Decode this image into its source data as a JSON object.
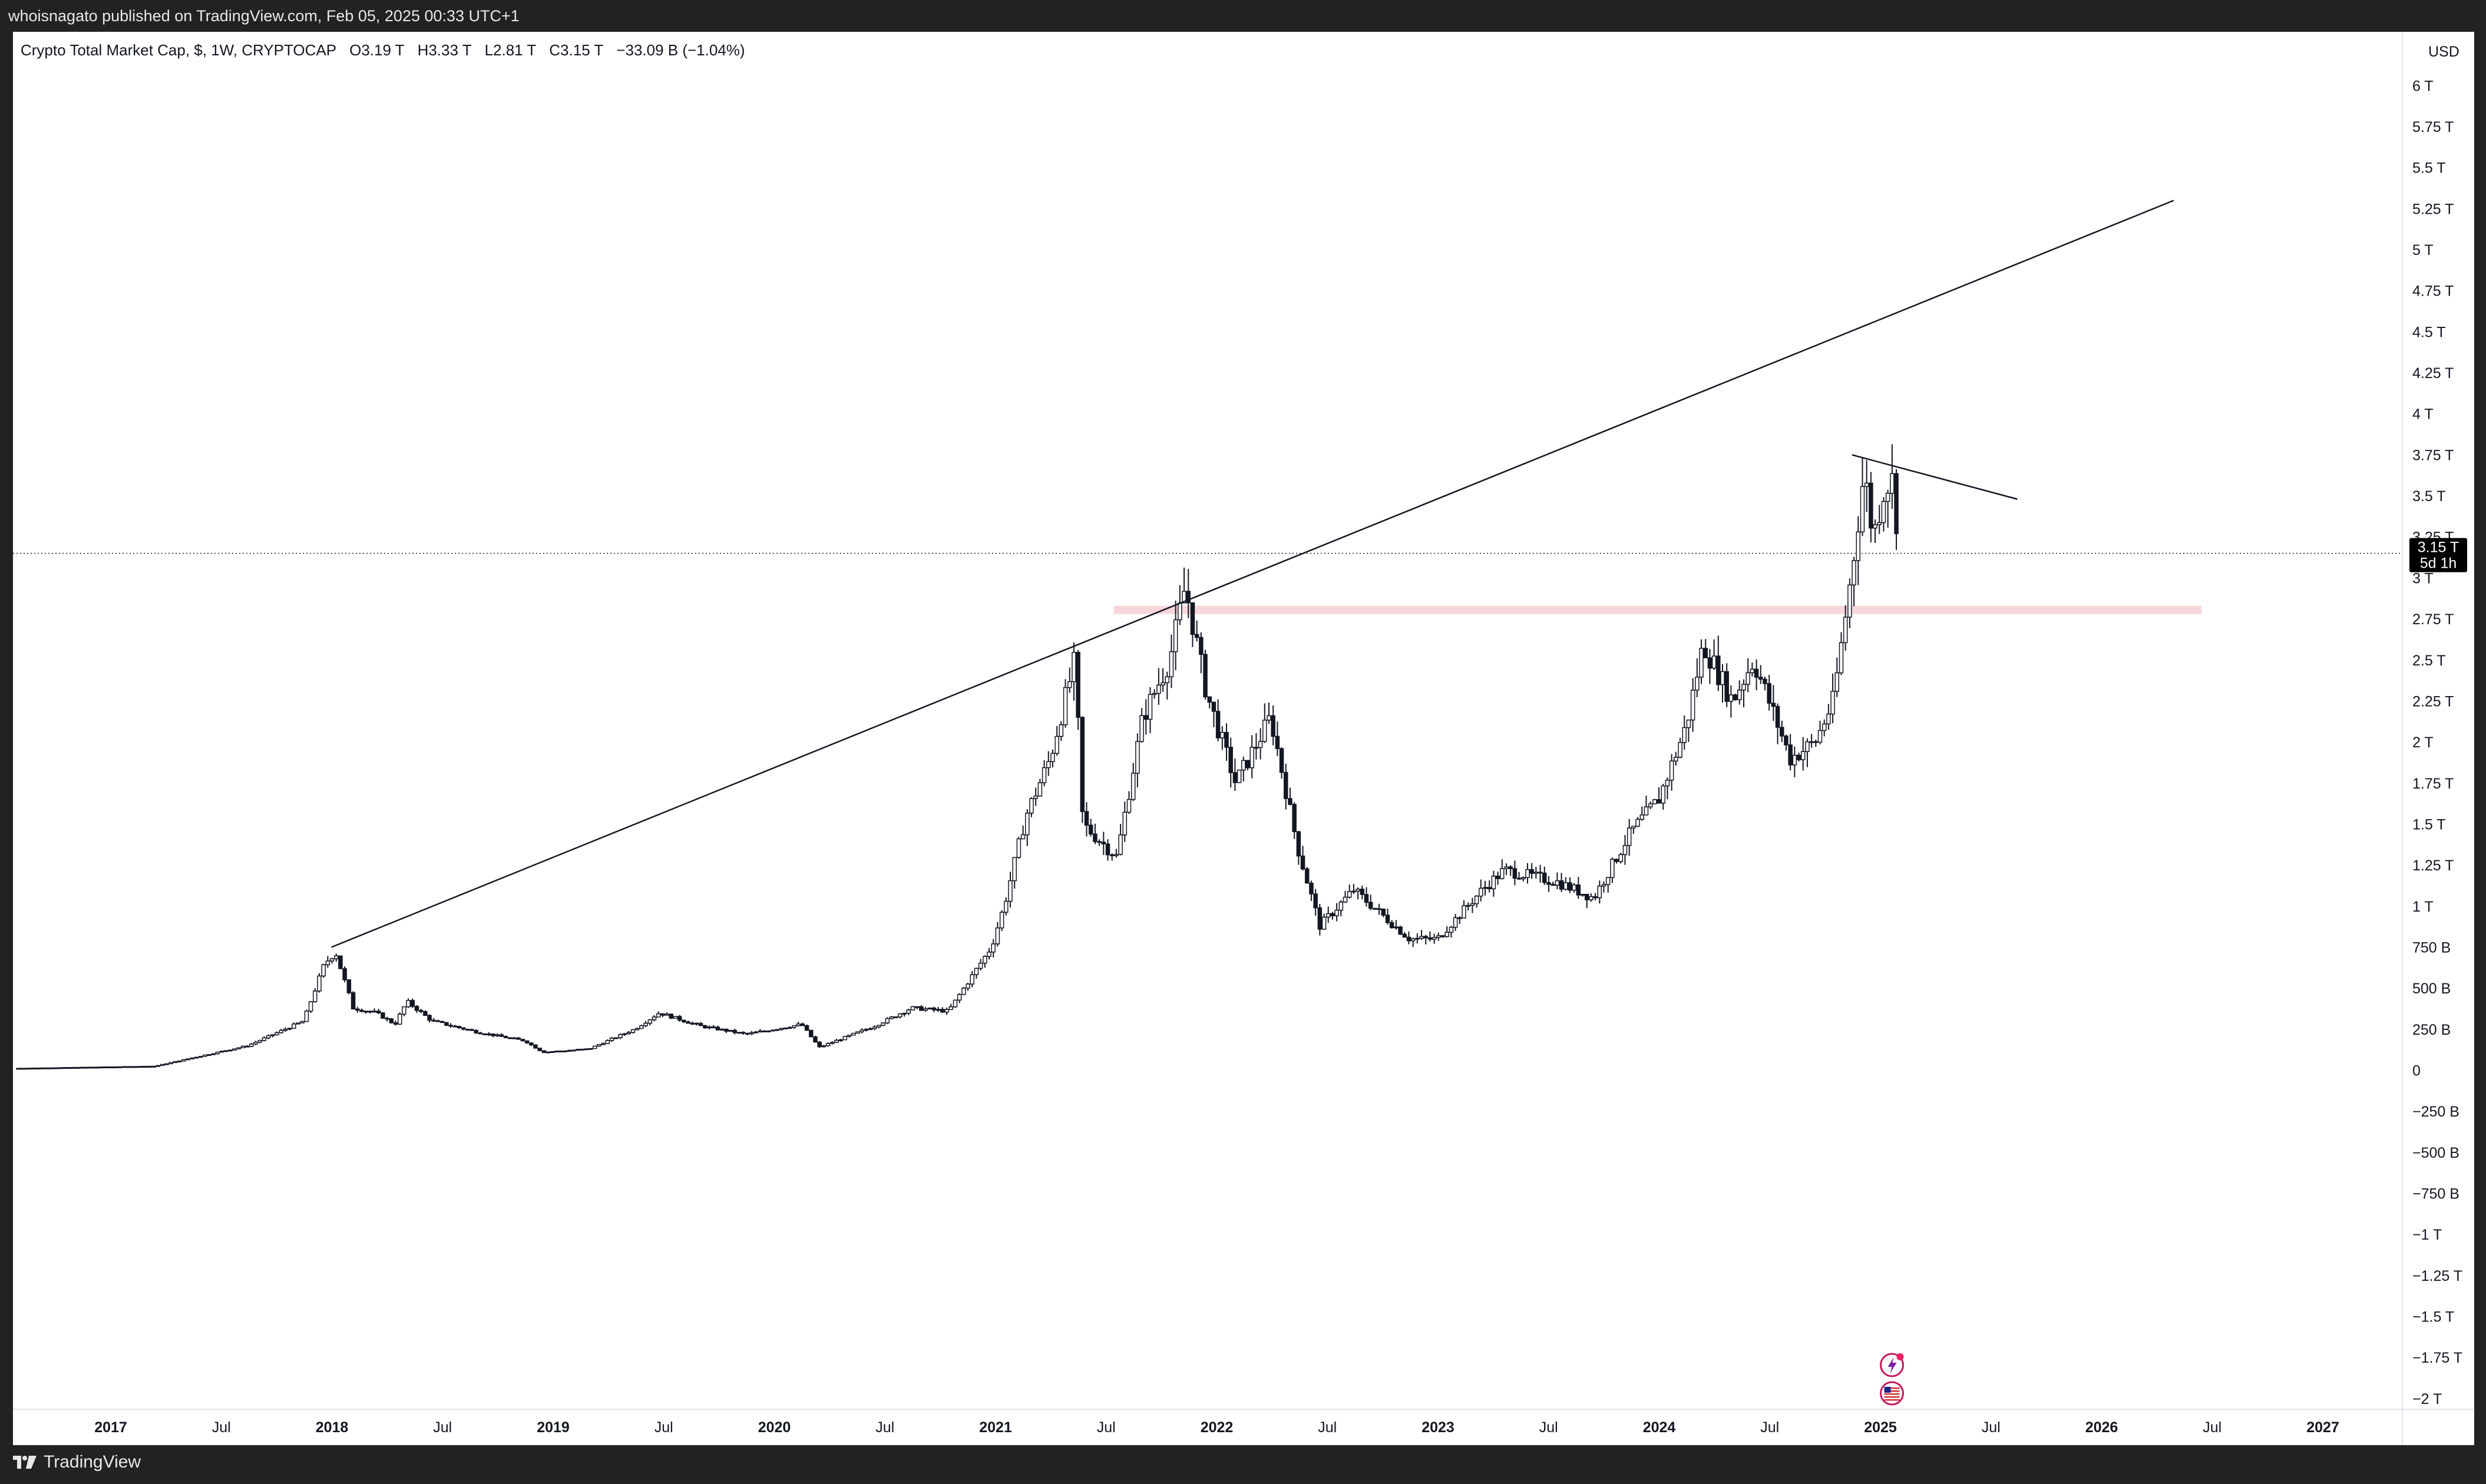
{
  "header": {
    "published_by": "whoisnagato published on TradingView.com, Feb 05, 2025 00:33 UTC+1"
  },
  "legend": {
    "title": "Crypto Total Market Cap, $, 1W, CRYPTOCAP",
    "open": "O3.19 T",
    "high": "H3.33 T",
    "low": "L2.81 T",
    "close": "C3.15 T",
    "change": "−33.09 B (−1.04%)"
  },
  "price_scale": {
    "currency": "USD",
    "ticks": [
      {
        "v": 6,
        "label": "6 T"
      },
      {
        "v": 5.75,
        "label": "5.75 T"
      },
      {
        "v": 5.5,
        "label": "5.5 T"
      },
      {
        "v": 5.25,
        "label": "5.25 T"
      },
      {
        "v": 5,
        "label": "5 T"
      },
      {
        "v": 4.75,
        "label": "4.75 T"
      },
      {
        "v": 4.5,
        "label": "4.5 T"
      },
      {
        "v": 4.25,
        "label": "4.25 T"
      },
      {
        "v": 4,
        "label": "4 T"
      },
      {
        "v": 3.75,
        "label": "3.75 T"
      },
      {
        "v": 3.5,
        "label": "3.5 T"
      },
      {
        "v": 3.25,
        "label": "3.25 T"
      },
      {
        "v": 3,
        "label": "3 T"
      },
      {
        "v": 2.75,
        "label": "2.75 T"
      },
      {
        "v": 2.5,
        "label": "2.5 T"
      },
      {
        "v": 2.25,
        "label": "2.25 T"
      },
      {
        "v": 2,
        "label": "2 T"
      },
      {
        "v": 1.75,
        "label": "1.75 T"
      },
      {
        "v": 1.5,
        "label": "1.5 T"
      },
      {
        "v": 1.25,
        "label": "1.25 T"
      },
      {
        "v": 1,
        "label": "1 T"
      },
      {
        "v": 0.75,
        "label": "750 B"
      },
      {
        "v": 0.5,
        "label": "500 B"
      },
      {
        "v": 0.25,
        "label": "250 B"
      },
      {
        "v": 0,
        "label": "0"
      },
      {
        "v": -0.25,
        "label": "−250 B"
      },
      {
        "v": -0.5,
        "label": "−500 B"
      },
      {
        "v": -0.75,
        "label": "−750 B"
      },
      {
        "v": -1,
        "label": "−1 T"
      },
      {
        "v": -1.25,
        "label": "−1.25 T"
      },
      {
        "v": -1.5,
        "label": "−1.5 T"
      },
      {
        "v": -1.75,
        "label": "−1.75 T"
      },
      {
        "v": -2,
        "label": "−2 T"
      }
    ],
    "last_price_label": "3.15 T",
    "countdown_label": "5d 1h"
  },
  "time_scale": {
    "ticks": [
      {
        "t": 2017.0,
        "label": "2017",
        "bold": true
      },
      {
        "t": 2017.5,
        "label": "Jul",
        "bold": false
      },
      {
        "t": 2018.0,
        "label": "2018",
        "bold": true
      },
      {
        "t": 2018.5,
        "label": "Jul",
        "bold": false
      },
      {
        "t": 2019.0,
        "label": "2019",
        "bold": true
      },
      {
        "t": 2019.5,
        "label": "Jul",
        "bold": false
      },
      {
        "t": 2020.0,
        "label": "2020",
        "bold": true
      },
      {
        "t": 2020.5,
        "label": "Jul",
        "bold": false
      },
      {
        "t": 2021.0,
        "label": "2021",
        "bold": true
      },
      {
        "t": 2021.5,
        "label": "Jul",
        "bold": false
      },
      {
        "t": 2022.0,
        "label": "2022",
        "bold": true
      },
      {
        "t": 2022.5,
        "label": "Jul",
        "bold": false
      },
      {
        "t": 2023.0,
        "label": "2023",
        "bold": true
      },
      {
        "t": 2023.5,
        "label": "Jul",
        "bold": false
      },
      {
        "t": 2024.0,
        "label": "2024",
        "bold": true
      },
      {
        "t": 2024.5,
        "label": "Jul",
        "bold": false
      },
      {
        "t": 2025.0,
        "label": "2025",
        "bold": true
      },
      {
        "t": 2025.5,
        "label": "Jul",
        "bold": false
      },
      {
        "t": 2026.0,
        "label": "2026",
        "bold": true
      },
      {
        "t": 2026.5,
        "label": "Jul",
        "bold": false
      },
      {
        "t": 2027.0,
        "label": "2027",
        "bold": true
      }
    ]
  },
  "chart_data": {
    "type": "candlestick",
    "symbol": "CRYPTOCAP:TOTAL",
    "interval": "1W",
    "unit": "USD (trillions)",
    "ylim": [
      -2.03,
      6.3
    ],
    "xlim": [
      "2016-08",
      "2027-06"
    ],
    "price_path_T": [
      {
        "t": "2016-08-01",
        "v": 0.012
      },
      {
        "t": "2017-03-15",
        "v": 0.025
      },
      {
        "t": "2017-05-15",
        "v": 0.075
      },
      {
        "t": "2017-08-15",
        "v": 0.15
      },
      {
        "t": "2017-11-15",
        "v": 0.3
      },
      {
        "t": "2017-12-20",
        "v": 0.65
      },
      {
        "t": "2018-01-07",
        "v": 0.72
      },
      {
        "t": "2018-02-05",
        "v": 0.38
      },
      {
        "t": "2018-03-15",
        "v": 0.35
      },
      {
        "t": "2018-04-15",
        "v": 0.28
      },
      {
        "t": "2018-05-05",
        "v": 0.42
      },
      {
        "t": "2018-06-15",
        "v": 0.3
      },
      {
        "t": "2018-09-01",
        "v": 0.23
      },
      {
        "t": "2018-11-15",
        "v": 0.18
      },
      {
        "t": "2018-12-15",
        "v": 0.11
      },
      {
        "t": "2019-03-01",
        "v": 0.13
      },
      {
        "t": "2019-05-15",
        "v": 0.25
      },
      {
        "t": "2019-06-25",
        "v": 0.35
      },
      {
        "t": "2019-09-01",
        "v": 0.27
      },
      {
        "t": "2019-11-15",
        "v": 0.22
      },
      {
        "t": "2020-02-15",
        "v": 0.28
      },
      {
        "t": "2020-03-15",
        "v": 0.14
      },
      {
        "t": "2020-06-15",
        "v": 0.27
      },
      {
        "t": "2020-08-15",
        "v": 0.38
      },
      {
        "t": "2020-10-15",
        "v": 0.36
      },
      {
        "t": "2020-12-25",
        "v": 0.75
      },
      {
        "t": "2021-01-15",
        "v": 1.0
      },
      {
        "t": "2021-02-20",
        "v": 1.55
      },
      {
        "t": "2021-04-01",
        "v": 1.9
      },
      {
        "t": "2021-05-12",
        "v": 2.5
      },
      {
        "t": "2021-05-25",
        "v": 1.5
      },
      {
        "t": "2021-07-20",
        "v": 1.3
      },
      {
        "t": "2021-09-01",
        "v": 2.15
      },
      {
        "t": "2021-10-15",
        "v": 2.5
      },
      {
        "t": "2021-11-10",
        "v": 2.95
      },
      {
        "t": "2021-12-15",
        "v": 2.3
      },
      {
        "t": "2022-02-01",
        "v": 1.75
      },
      {
        "t": "2022-03-31",
        "v": 2.15
      },
      {
        "t": "2022-05-15",
        "v": 1.35
      },
      {
        "t": "2022-06-20",
        "v": 0.88
      },
      {
        "t": "2022-08-15",
        "v": 1.1
      },
      {
        "t": "2022-11-15",
        "v": 0.8
      },
      {
        "t": "2022-12-31",
        "v": 0.8
      },
      {
        "t": "2023-03-15",
        "v": 1.1
      },
      {
        "t": "2023-04-20",
        "v": 1.22
      },
      {
        "t": "2023-07-15",
        "v": 1.15
      },
      {
        "t": "2023-09-15",
        "v": 1.05
      },
      {
        "t": "2023-11-15",
        "v": 1.45
      },
      {
        "t": "2023-12-31",
        "v": 1.65
      },
      {
        "t": "2024-02-15",
        "v": 2.1
      },
      {
        "t": "2024-03-14",
        "v": 2.6
      },
      {
        "t": "2024-05-01",
        "v": 2.25
      },
      {
        "t": "2024-06-05",
        "v": 2.5
      },
      {
        "t": "2024-08-05",
        "v": 1.9
      },
      {
        "t": "2024-09-15",
        "v": 2.0
      },
      {
        "t": "2024-10-15",
        "v": 2.25
      },
      {
        "t": "2024-11-15",
        "v": 3.05
      },
      {
        "t": "2024-12-05",
        "v": 3.65
      },
      {
        "t": "2024-12-20",
        "v": 3.25
      },
      {
        "t": "2025-01-07",
        "v": 3.55
      },
      {
        "t": "2025-01-20",
        "v": 3.6
      },
      {
        "t": "2025-02-03",
        "v": 3.15
      }
    ],
    "drawings": [
      {
        "kind": "trendline",
        "from": {
          "t": "2017-12-31",
          "v": 0.75
        },
        "to": {
          "t": "2026-04-30",
          "v": 5.3
        }
      },
      {
        "kind": "trendline",
        "from": {
          "t": "2024-11-15",
          "v": 3.75
        },
        "to": {
          "t": "2025-08-15",
          "v": 3.48
        }
      },
      {
        "kind": "zone",
        "from_t": "2021-07-15",
        "to_t": "2026-06-15",
        "v_low": 2.78,
        "v_high": 2.83,
        "color": "#f9d6da"
      }
    ],
    "last_price": 3.15,
    "colors": {
      "candle": "#131722",
      "zone": "#f9d6da",
      "last_label_bg": "#000000",
      "background": "#ffffff",
      "frame": "#222222"
    }
  },
  "footer": {
    "brand": "TradingView"
  }
}
